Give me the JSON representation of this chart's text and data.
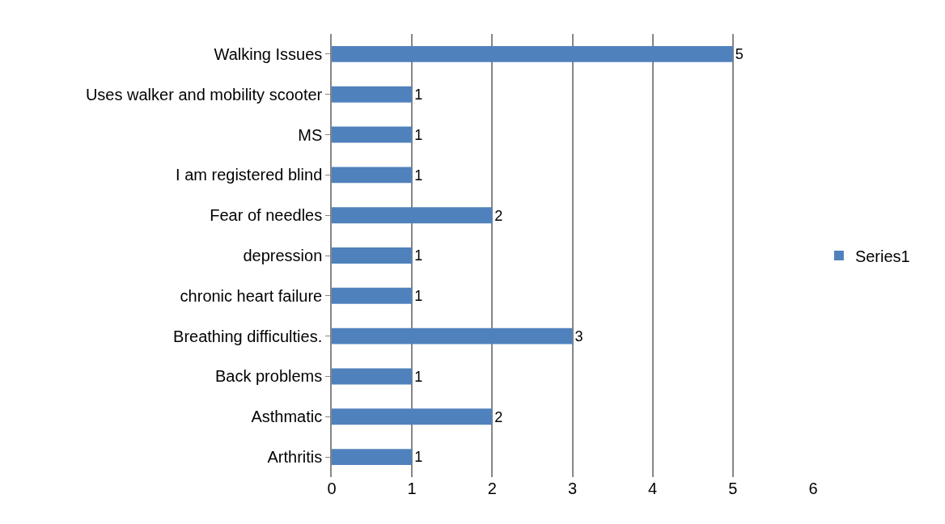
{
  "chart_data": {
    "type": "bar",
    "orientation": "horizontal",
    "categories": [
      "Walking Issues",
      "Uses walker and mobility scooter",
      "MS",
      "I am registered blind",
      "Fear of needles",
      "depression",
      "chronic heart failure",
      "Breathing difficulties.",
      "Back problems",
      "Asthmatic",
      "Arthritis"
    ],
    "series": [
      {
        "name": "Series1",
        "color": "#4f81bd",
        "values": [
          5,
          1,
          1,
          1,
          2,
          1,
          1,
          3,
          1,
          2,
          1
        ]
      }
    ],
    "xlim": [
      0,
      6
    ],
    "xticks": [
      0,
      1,
      2,
      3,
      4,
      5,
      6
    ],
    "grid": "x",
    "legend": "right",
    "data_labels": true
  }
}
